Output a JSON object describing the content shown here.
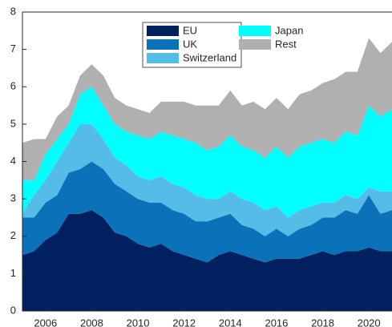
{
  "chart_data": {
    "type": "stacked_area",
    "x": [
      2005,
      2005.5,
      2006,
      2006.5,
      2007,
      2007.5,
      2008,
      2008.5,
      2009,
      2009.5,
      2010,
      2010.5,
      2011,
      2011.5,
      2012,
      2012.5,
      2013,
      2013.5,
      2014,
      2014.5,
      2015,
      2015.5,
      2016,
      2016.5,
      2017,
      2017.5,
      2018,
      2018.5,
      2019,
      2019.5,
      2020,
      2020.5,
      2021
    ],
    "series": [
      {
        "name": "EU",
        "color": "#00205f",
        "values": [
          1.5,
          1.6,
          1.9,
          2.1,
          2.6,
          2.6,
          2.7,
          2.5,
          2.1,
          2.0,
          1.8,
          1.7,
          1.8,
          1.6,
          1.5,
          1.4,
          1.3,
          1.5,
          1.6,
          1.5,
          1.4,
          1.3,
          1.4,
          1.4,
          1.4,
          1.5,
          1.6,
          1.5,
          1.6,
          1.6,
          1.7,
          1.6,
          1.6
        ]
      },
      {
        "name": "UK",
        "color": "#0a72b8",
        "values": [
          1.0,
          0.9,
          1.0,
          1.0,
          1.1,
          1.2,
          1.3,
          1.3,
          1.3,
          1.2,
          1.2,
          1.2,
          1.1,
          1.1,
          1.1,
          1.0,
          1.1,
          1.0,
          1.0,
          0.8,
          0.8,
          0.7,
          0.8,
          0.6,
          0.8,
          0.8,
          0.9,
          1.0,
          1.1,
          1.0,
          1.4,
          1.0,
          1.1
        ]
      },
      {
        "name": "Switzerland",
        "color": "#55bce8",
        "values": [
          0.1,
          0.6,
          0.6,
          0.9,
          0.8,
          1.2,
          1.0,
          0.8,
          0.7,
          0.7,
          0.6,
          0.6,
          0.7,
          0.7,
          0.7,
          0.7,
          0.6,
          0.5,
          0.6,
          0.7,
          0.7,
          0.7,
          0.6,
          0.5,
          0.5,
          0.5,
          0.4,
          0.4,
          0.4,
          0.4,
          0.2,
          0.6,
          0.5
        ]
      },
      {
        "name": "Japan",
        "color": "#00ffff",
        "values": [
          0.9,
          0.4,
          0.7,
          0.6,
          0.5,
          0.8,
          1.0,
          0.9,
          0.9,
          0.9,
          1.1,
          1.1,
          1.2,
          1.3,
          1.3,
          1.4,
          1.3,
          1.4,
          1.5,
          1.4,
          1.4,
          1.4,
          1.6,
          1.6,
          1.7,
          1.7,
          1.7,
          1.6,
          1.7,
          1.7,
          2.2,
          2.0,
          2.2
        ]
      },
      {
        "name": "Rest",
        "color": "#b0b0b0",
        "values": [
          1.0,
          1.1,
          0.4,
          0.6,
          0.5,
          0.5,
          0.6,
          0.8,
          0.7,
          0.7,
          0.7,
          0.7,
          0.8,
          0.9,
          1.0,
          1.0,
          1.2,
          1.1,
          1.2,
          1.1,
          1.3,
          1.3,
          1.3,
          1.3,
          1.4,
          1.4,
          1.5,
          1.7,
          1.6,
          1.7,
          1.8,
          1.7,
          1.8
        ]
      }
    ],
    "xlim": [
      2005,
      2021
    ],
    "xticks": [
      2006,
      2008,
      2010,
      2012,
      2014,
      2016,
      2018,
      2020
    ],
    "ylim": [
      0,
      8
    ],
    "yticks": [
      0,
      1,
      2,
      3,
      4,
      5,
      6,
      7,
      8
    ]
  }
}
